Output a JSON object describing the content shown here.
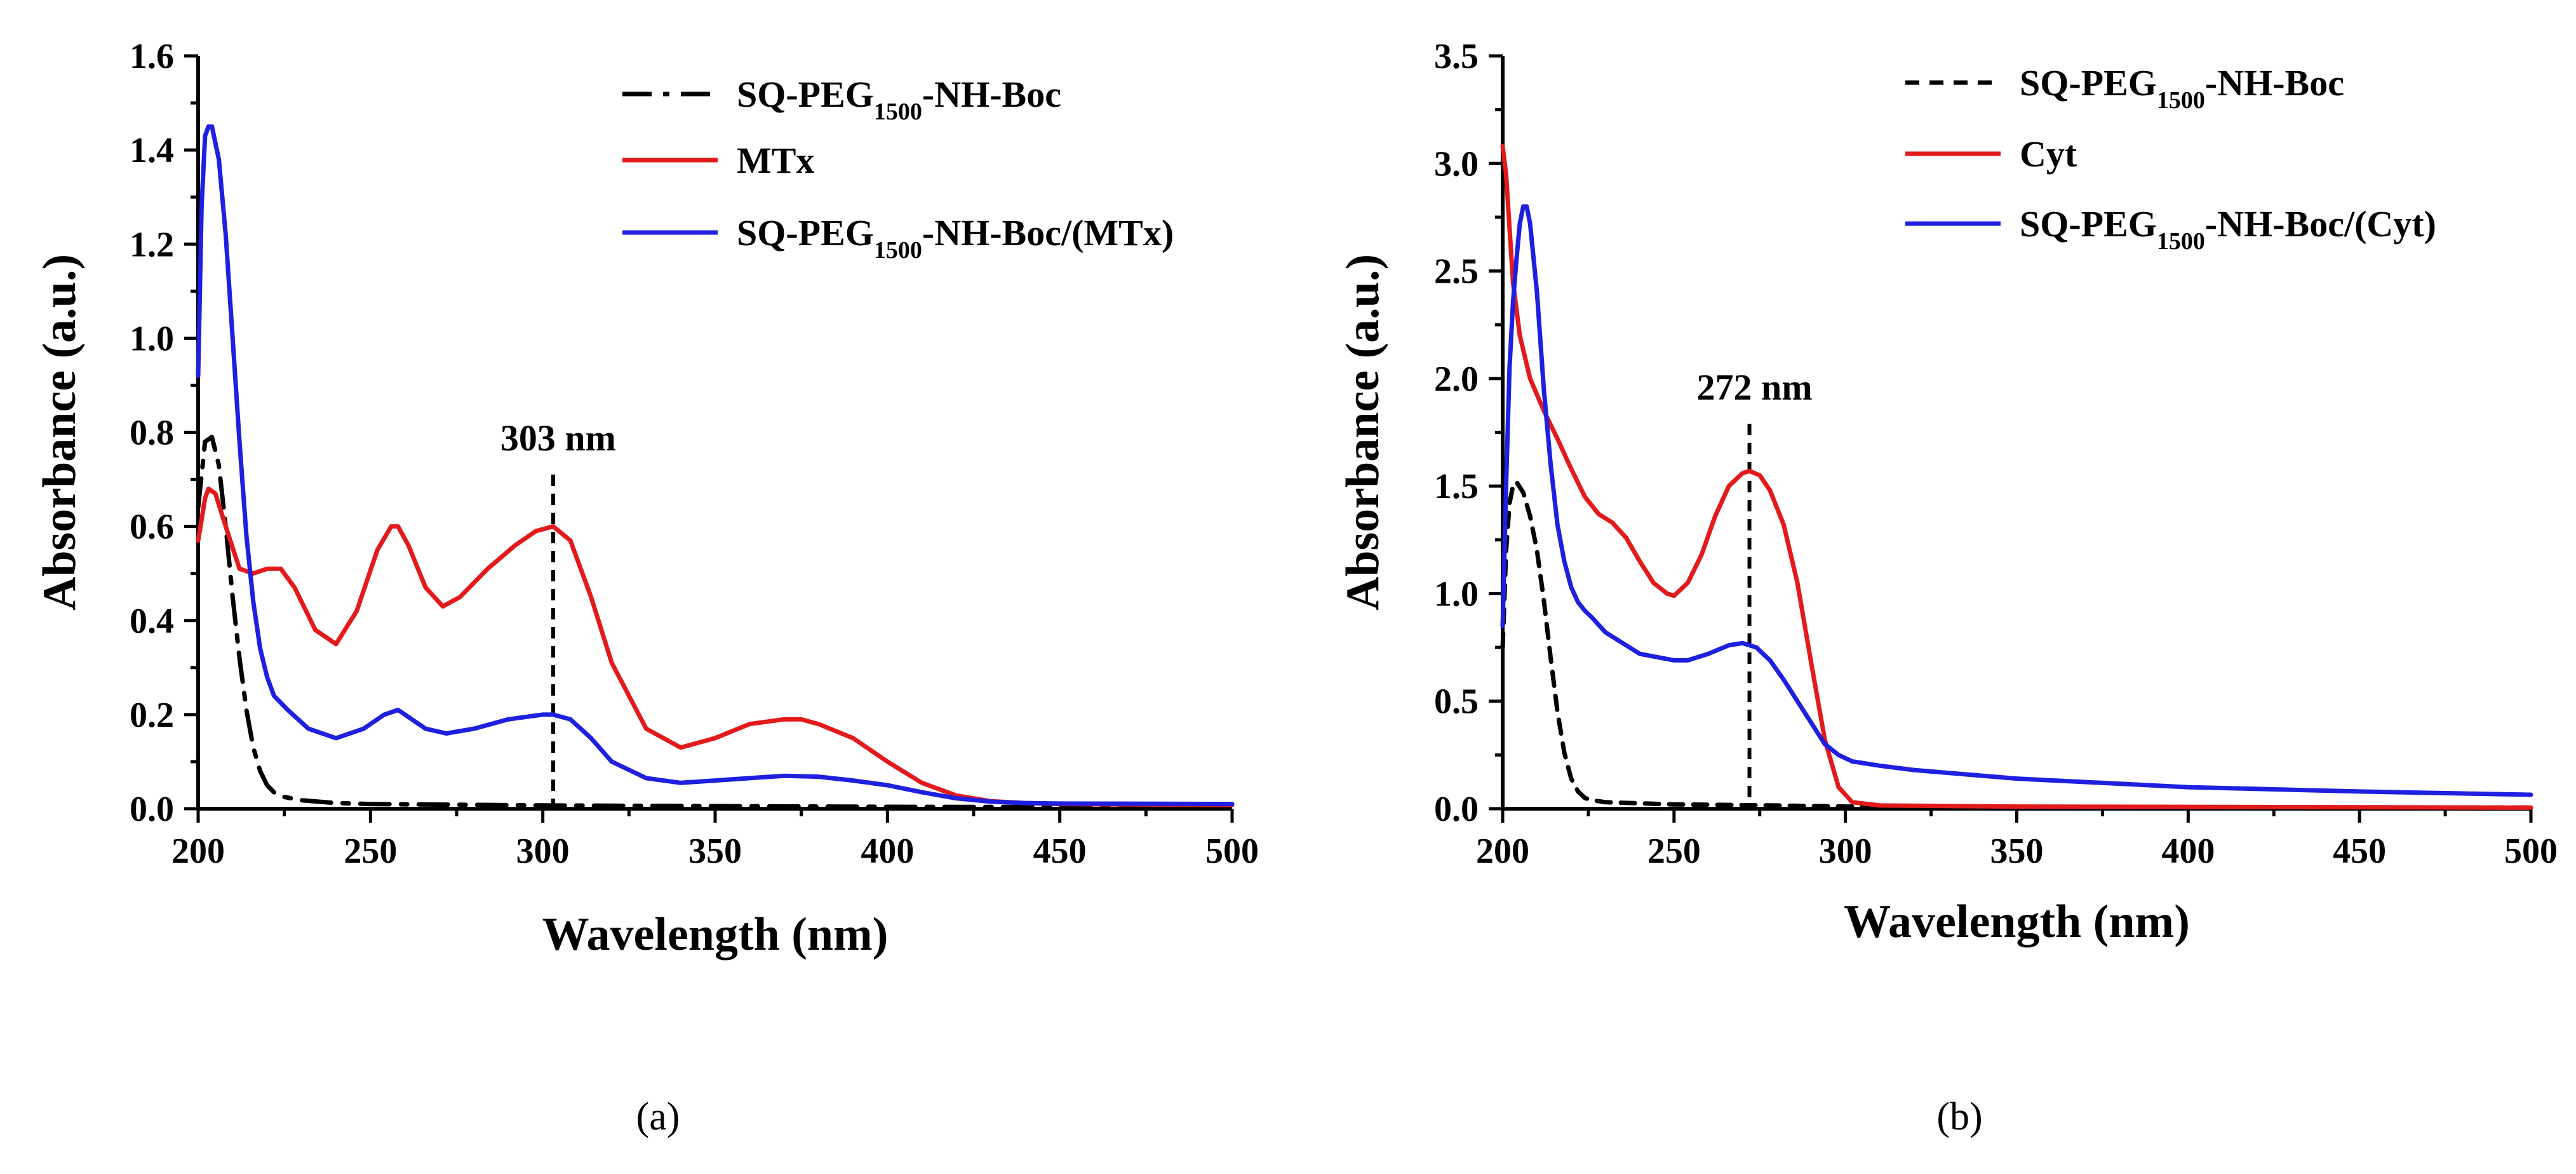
{
  "chart_data": [
    {
      "id": "a",
      "type": "line",
      "caption": "(a)",
      "xlabel": "Wavelength (nm)",
      "ylabel": "Absorbance (a.u.)",
      "xlim": [
        200,
        500
      ],
      "ylim": [
        0,
        1.6
      ],
      "xticks": [
        "200",
        "250",
        "300",
        "350",
        "400",
        "450",
        "500"
      ],
      "yticks": [
        "0.0",
        "0.2",
        "0.4",
        "0.6",
        "0.8",
        "1.0",
        "1.2",
        "1.4",
        "1.6"
      ],
      "legend_position": "top-right",
      "annotation": {
        "label": "303 nm",
        "x": 303,
        "y_top": 0.71
      },
      "series": [
        {
          "label_main": "SQ-PEG",
          "label_sub": "1500",
          "label_rest": "-NH-Boc",
          "color": "#000000",
          "dash": "dash-dot",
          "x": [
            200,
            202,
            204,
            206,
            208,
            210,
            212,
            214,
            216,
            218,
            220,
            222,
            225,
            230,
            240,
            250,
            300,
            400,
            500
          ],
          "y": [
            0.64,
            0.78,
            0.79,
            0.73,
            0.6,
            0.45,
            0.32,
            0.21,
            0.13,
            0.08,
            0.05,
            0.035,
            0.025,
            0.018,
            0.012,
            0.01,
            0.007,
            0.004,
            0.003
          ]
        },
        {
          "label_main": "MTx",
          "label_sub": "",
          "label_rest": "",
          "color": "#e31a1c",
          "dash": "solid",
          "x": [
            200,
            202,
            203,
            205,
            208,
            212,
            216,
            220,
            224,
            228,
            234,
            240,
            246,
            252,
            256,
            258,
            261,
            266,
            271,
            276,
            284,
            292,
            298,
            303,
            308,
            314,
            320,
            330,
            340,
            350,
            360,
            370,
            375,
            380,
            390,
            400,
            410,
            420,
            430,
            440,
            450,
            500
          ],
          "y": [
            0.57,
            0.66,
            0.68,
            0.67,
            0.6,
            0.51,
            0.5,
            0.51,
            0.51,
            0.47,
            0.38,
            0.35,
            0.42,
            0.55,
            0.6,
            0.6,
            0.56,
            0.47,
            0.43,
            0.45,
            0.51,
            0.56,
            0.59,
            0.6,
            0.57,
            0.45,
            0.31,
            0.17,
            0.13,
            0.15,
            0.18,
            0.19,
            0.19,
            0.18,
            0.15,
            0.1,
            0.055,
            0.028,
            0.016,
            0.012,
            0.01,
            0.008
          ]
        },
        {
          "label_main": "SQ-PEG",
          "label_sub": "1500",
          "label_rest": "-NH-Boc/(MTx)",
          "color": "#1f1fe0",
          "dash": "solid",
          "x": [
            200,
            201,
            202,
            203,
            204,
            206,
            208,
            210,
            212,
            214,
            216,
            218,
            220,
            222,
            226,
            232,
            240,
            248,
            254,
            258,
            262,
            266,
            272,
            280,
            290,
            300,
            303,
            308,
            314,
            320,
            330,
            340,
            350,
            360,
            370,
            380,
            390,
            400,
            410,
            420,
            430,
            440,
            450,
            500
          ],
          "y": [
            0.92,
            1.28,
            1.43,
            1.45,
            1.45,
            1.38,
            1.22,
            1.0,
            0.78,
            0.58,
            0.44,
            0.34,
            0.28,
            0.24,
            0.21,
            0.17,
            0.15,
            0.17,
            0.2,
            0.21,
            0.19,
            0.17,
            0.16,
            0.17,
            0.19,
            0.2,
            0.2,
            0.19,
            0.15,
            0.1,
            0.065,
            0.055,
            0.06,
            0.065,
            0.07,
            0.068,
            0.06,
            0.05,
            0.035,
            0.022,
            0.015,
            0.012,
            0.011,
            0.01
          ]
        }
      ]
    },
    {
      "id": "b",
      "type": "line",
      "caption": "(b)",
      "xlabel": "Wavelength (nm)",
      "ylabel": "Absorbance (a.u.)",
      "xlim": [
        200,
        500
      ],
      "ylim": [
        0,
        3.5
      ],
      "xticks": [
        "200",
        "250",
        "300",
        "350",
        "400",
        "450",
        "500"
      ],
      "yticks": [
        "0.0",
        "0.5",
        "1.0",
        "1.5",
        "2.0",
        "2.5",
        "3.0",
        "3.5"
      ],
      "legend_position": "top-right",
      "annotation": {
        "label": "272 nm",
        "x": 272,
        "y_top": 1.79
      },
      "series": [
        {
          "label_main": "SQ-PEG",
          "label_sub": "1500",
          "label_rest": "-NH-Boc",
          "color": "#000000",
          "dash": "dashed",
          "x": [
            200,
            201,
            202,
            203,
            204,
            206,
            208,
            210,
            212,
            214,
            216,
            218,
            220,
            222,
            224,
            226,
            230,
            240,
            250,
            280,
            300,
            500
          ],
          "y": [
            0.75,
            1.2,
            1.42,
            1.5,
            1.52,
            1.47,
            1.36,
            1.2,
            0.97,
            0.7,
            0.45,
            0.26,
            0.14,
            0.08,
            0.05,
            0.04,
            0.03,
            0.025,
            0.02,
            0.015,
            0.01,
            0.005
          ]
        },
        {
          "label_main": "Cyt",
          "label_sub": "",
          "label_rest": "",
          "color": "#e31a1c",
          "dash": "solid",
          "x": [
            200,
            201,
            202,
            203,
            205,
            208,
            212,
            216,
            220,
            224,
            228,
            232,
            236,
            240,
            244,
            248,
            250,
            254,
            258,
            262,
            266,
            270,
            272,
            275,
            278,
            282,
            286,
            290,
            294,
            298,
            302,
            310,
            350,
            500
          ],
          "y": [
            3.08,
            2.95,
            2.7,
            2.45,
            2.2,
            2.0,
            1.85,
            1.72,
            1.58,
            1.45,
            1.37,
            1.33,
            1.26,
            1.15,
            1.05,
            1.0,
            0.99,
            1.05,
            1.18,
            1.36,
            1.5,
            1.56,
            1.57,
            1.55,
            1.48,
            1.32,
            1.05,
            0.68,
            0.32,
            0.1,
            0.03,
            0.015,
            0.01,
            0.005
          ]
        },
        {
          "label_main": "SQ-PEG",
          "label_sub": "1500",
          "label_rest": "-NH-Boc/(Cyt)",
          "color": "#1f1fe0",
          "dash": "solid",
          "x": [
            200,
            201,
            202,
            203,
            204,
            205,
            206,
            207,
            208,
            210,
            212,
            214,
            216,
            218,
            220,
            222,
            224,
            226,
            230,
            240,
            250,
            254,
            260,
            266,
            270,
            274,
            278,
            282,
            286,
            290,
            294,
            298,
            302,
            310,
            320,
            350,
            400,
            450,
            500
          ],
          "y": [
            0.85,
            1.5,
            2.05,
            2.35,
            2.55,
            2.72,
            2.8,
            2.8,
            2.72,
            2.4,
            1.95,
            1.6,
            1.32,
            1.15,
            1.03,
            0.96,
            0.92,
            0.89,
            0.82,
            0.72,
            0.69,
            0.69,
            0.72,
            0.76,
            0.77,
            0.75,
            0.69,
            0.6,
            0.5,
            0.4,
            0.3,
            0.25,
            0.22,
            0.2,
            0.18,
            0.14,
            0.1,
            0.08,
            0.065
          ]
        }
      ]
    }
  ]
}
